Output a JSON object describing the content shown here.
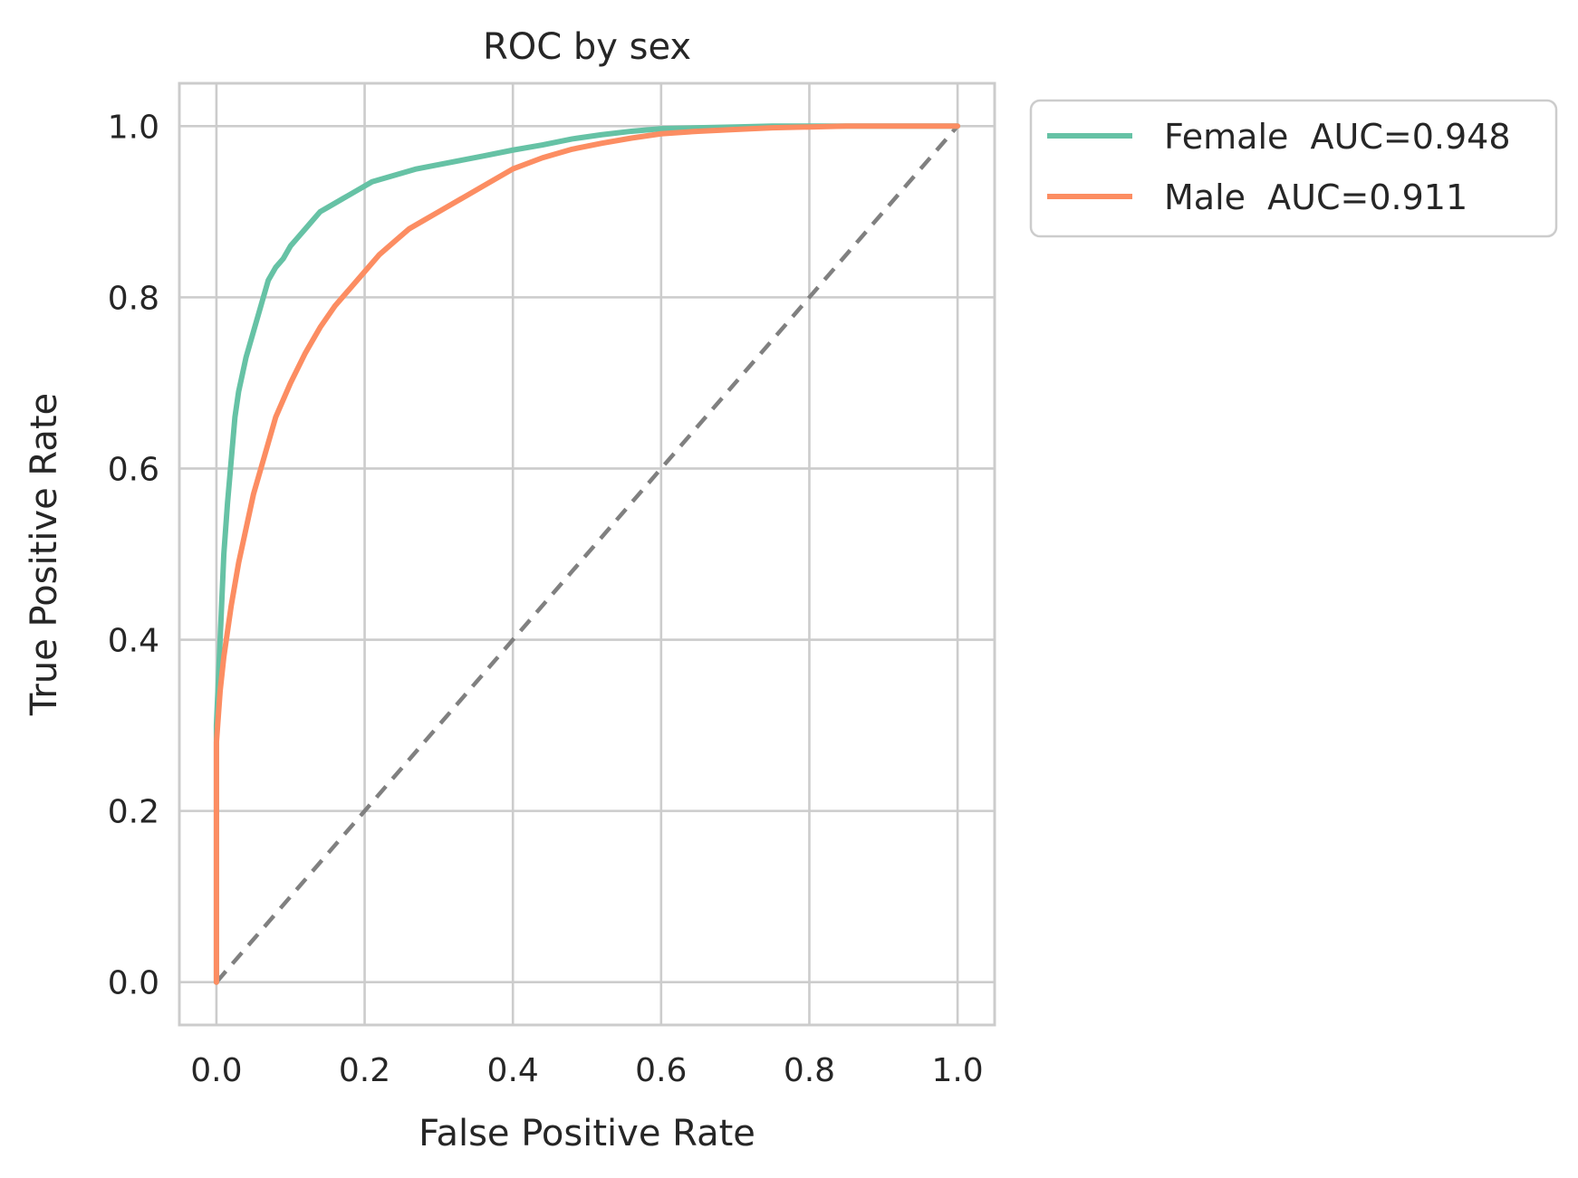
{
  "chart_data": {
    "type": "line",
    "title": "ROC by sex",
    "xlabel": "False Positive Rate",
    "ylabel": "True Positive Rate",
    "xlim": [
      -0.05,
      1.05
    ],
    "ylim": [
      -0.05,
      1.05
    ],
    "xticks": [
      0.0,
      0.2,
      0.4,
      0.6,
      0.8,
      1.0
    ],
    "yticks": [
      0.0,
      0.2,
      0.4,
      0.6,
      0.8,
      1.0
    ],
    "xtick_labels": [
      "0.0",
      "0.2",
      "0.4",
      "0.6",
      "0.8",
      "1.0"
    ],
    "ytick_labels": [
      "0.0",
      "0.2",
      "0.4",
      "0.6",
      "0.8",
      "1.0"
    ],
    "grid": true,
    "legend_position": "outside upper right",
    "series": [
      {
        "name": "Female  AUC=0.948",
        "color": "#66c2a5",
        "x": [
          0.0,
          0.0,
          0.005,
          0.01,
          0.015,
          0.02,
          0.025,
          0.03,
          0.035,
          0.04,
          0.05,
          0.06,
          0.07,
          0.08,
          0.09,
          0.1,
          0.11,
          0.12,
          0.13,
          0.14,
          0.15,
          0.17,
          0.19,
          0.21,
          0.23,
          0.25,
          0.27,
          0.3,
          0.33,
          0.36,
          0.4,
          0.44,
          0.48,
          0.52,
          0.56,
          0.6,
          0.65,
          0.7,
          0.75,
          0.8,
          0.85,
          0.9,
          1.0
        ],
        "y": [
          0.0,
          0.3,
          0.4,
          0.5,
          0.56,
          0.61,
          0.66,
          0.69,
          0.71,
          0.73,
          0.76,
          0.79,
          0.82,
          0.835,
          0.845,
          0.86,
          0.87,
          0.88,
          0.89,
          0.9,
          0.905,
          0.915,
          0.925,
          0.935,
          0.94,
          0.945,
          0.95,
          0.955,
          0.96,
          0.965,
          0.972,
          0.978,
          0.985,
          0.99,
          0.994,
          0.997,
          0.998,
          0.999,
          1.0,
          1.0,
          1.0,
          1.0,
          1.0
        ]
      },
      {
        "name": "Male  AUC=0.911",
        "color": "#fc8d62",
        "x": [
          0.0,
          0.0,
          0.005,
          0.01,
          0.015,
          0.02,
          0.03,
          0.04,
          0.05,
          0.06,
          0.07,
          0.08,
          0.1,
          0.12,
          0.14,
          0.16,
          0.18,
          0.2,
          0.22,
          0.24,
          0.26,
          0.28,
          0.3,
          0.33,
          0.36,
          0.4,
          0.44,
          0.48,
          0.52,
          0.56,
          0.6,
          0.65,
          0.7,
          0.75,
          0.8,
          0.85,
          0.9,
          0.95,
          1.0
        ],
        "y": [
          0.0,
          0.28,
          0.34,
          0.38,
          0.41,
          0.44,
          0.49,
          0.53,
          0.57,
          0.6,
          0.63,
          0.66,
          0.7,
          0.735,
          0.765,
          0.79,
          0.81,
          0.83,
          0.85,
          0.865,
          0.88,
          0.89,
          0.9,
          0.915,
          0.93,
          0.95,
          0.963,
          0.973,
          0.98,
          0.986,
          0.991,
          0.994,
          0.996,
          0.998,
          0.999,
          1.0,
          1.0,
          1.0,
          1.0
        ]
      },
      {
        "name": "",
        "style": "dashed",
        "color": "#808080",
        "x": [
          0.0,
          1.0
        ],
        "y": [
          0.0,
          1.0
        ]
      }
    ]
  }
}
